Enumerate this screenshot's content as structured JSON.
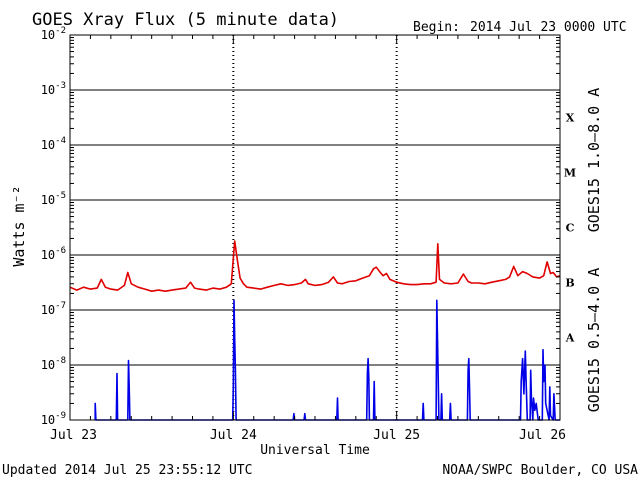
{
  "header": {
    "title": "GOES Xray Flux (5 minute data)",
    "begin_label": "Begin:",
    "begin_value": "2014 Jul 23 0000 UTC"
  },
  "footer": {
    "updated": "Updated 2014 Jul 25 23:55:12 UTC",
    "source": "NOAA/SWPC Boulder, CO USA"
  },
  "chart_data": {
    "type": "line",
    "title": "GOES Xray Flux (5 minute data)",
    "xlabel": "Universal Time",
    "ylabel": "Watts m⁻²",
    "y_scale": "log",
    "ylim": [
      1e-09,
      0.01
    ],
    "y_ticks": [
      {
        "value": 0.01,
        "base": "10",
        "exp": "-2"
      },
      {
        "value": 0.001,
        "base": "10",
        "exp": "-3"
      },
      {
        "value": 0.0001,
        "base": "10",
        "exp": "-4"
      },
      {
        "value": 1e-05,
        "base": "10",
        "exp": "-5"
      },
      {
        "value": 1e-06,
        "base": "10",
        "exp": "-6"
      },
      {
        "value": 1e-07,
        "base": "10",
        "exp": "-7"
      },
      {
        "value": 1e-08,
        "base": "10",
        "exp": "-8"
      },
      {
        "value": 1e-09,
        "base": "10",
        "exp": "-9"
      }
    ],
    "x_ticks": [
      {
        "hour": 0,
        "label": "Jul 23"
      },
      {
        "hour": 24,
        "label": "Jul 24"
      },
      {
        "hour": 48,
        "label": "Jul 25"
      },
      {
        "hour": 72,
        "label": "Jul 26"
      }
    ],
    "xlim_hours": [
      0,
      72
    ],
    "flare_classes": [
      {
        "label": "X",
        "lo": 0.0001,
        "hi": 0.001
      },
      {
        "label": "M",
        "lo": 1e-05,
        "hi": 0.0001
      },
      {
        "label": "C",
        "lo": 1e-06,
        "hi": 1e-05
      },
      {
        "label": "B",
        "lo": 1e-07,
        "hi": 1e-06
      },
      {
        "label": "A",
        "lo": 1e-08,
        "hi": 1e-07
      }
    ],
    "grid": "horizontal decade lines; dotted vertical day lines",
    "series": [
      {
        "name": "GOES15 1.0–8.0 A",
        "color": "#e00000",
        "points": [
          [
            0,
            2.6e-07
          ],
          [
            1,
            2.3e-07
          ],
          [
            2,
            2.6e-07
          ],
          [
            3,
            2.4e-07
          ],
          [
            4,
            2.5e-07
          ],
          [
            4.6,
            3.6e-07
          ],
          [
            5.2,
            2.6e-07
          ],
          [
            6,
            2.4e-07
          ],
          [
            7,
            2.3e-07
          ],
          [
            8,
            2.8e-07
          ],
          [
            8.5,
            4.8e-07
          ],
          [
            9,
            3e-07
          ],
          [
            10,
            2.6e-07
          ],
          [
            11,
            2.4e-07
          ],
          [
            12,
            2.2e-07
          ],
          [
            13,
            2.3e-07
          ],
          [
            14,
            2.2e-07
          ],
          [
            15,
            2.3e-07
          ],
          [
            16,
            2.4e-07
          ],
          [
            17,
            2.5e-07
          ],
          [
            17.7,
            3.2e-07
          ],
          [
            18.3,
            2.5e-07
          ],
          [
            19,
            2.4e-07
          ],
          [
            20,
            2.3e-07
          ],
          [
            21,
            2.5e-07
          ],
          [
            22,
            2.4e-07
          ],
          [
            23,
            2.6e-07
          ],
          [
            23.7,
            3e-07
          ],
          [
            24.2,
            1.8e-06
          ],
          [
            24.6,
            8e-07
          ],
          [
            25,
            3.8e-07
          ],
          [
            25.5,
            3e-07
          ],
          [
            26,
            2.6e-07
          ],
          [
            27,
            2.5e-07
          ],
          [
            28,
            2.4e-07
          ],
          [
            29,
            2.6e-07
          ],
          [
            30,
            2.8e-07
          ],
          [
            31,
            3e-07
          ],
          [
            32,
            2.8e-07
          ],
          [
            33,
            2.9e-07
          ],
          [
            34,
            3.1e-07
          ],
          [
            34.6,
            3.6e-07
          ],
          [
            35,
            3e-07
          ],
          [
            36,
            2.8e-07
          ],
          [
            37,
            2.9e-07
          ],
          [
            38,
            3.2e-07
          ],
          [
            38.7,
            4e-07
          ],
          [
            39.3,
            3.1e-07
          ],
          [
            40,
            3e-07
          ],
          [
            41,
            3.3e-07
          ],
          [
            42,
            3.4e-07
          ],
          [
            43,
            3.8e-07
          ],
          [
            44,
            4.2e-07
          ],
          [
            44.6,
            5.6e-07
          ],
          [
            45,
            6e-07
          ],
          [
            45.6,
            4.8e-07
          ],
          [
            46,
            4.2e-07
          ],
          [
            46.5,
            4.6e-07
          ],
          [
            47,
            3.6e-07
          ],
          [
            48,
            3.2e-07
          ],
          [
            49,
            3e-07
          ],
          [
            50,
            2.9e-07
          ],
          [
            51,
            2.9e-07
          ],
          [
            52,
            3e-07
          ],
          [
            53,
            3e-07
          ],
          [
            53.8,
            3.2e-07
          ],
          [
            54.05,
            1.6e-06
          ],
          [
            54.3,
            3.6e-07
          ],
          [
            55,
            3.1e-07
          ],
          [
            56,
            3e-07
          ],
          [
            57,
            3.1e-07
          ],
          [
            57.8,
            4.5e-07
          ],
          [
            58.5,
            3.3e-07
          ],
          [
            59,
            3.1e-07
          ],
          [
            60,
            3.1e-07
          ],
          [
            61,
            3e-07
          ],
          [
            62,
            3.2e-07
          ],
          [
            63,
            3.4e-07
          ],
          [
            64,
            3.6e-07
          ],
          [
            64.6,
            4e-07
          ],
          [
            65.2,
            6.2e-07
          ],
          [
            65.8,
            4.2e-07
          ],
          [
            66.5,
            5e-07
          ],
          [
            67.2,
            4.6e-07
          ],
          [
            68,
            4e-07
          ],
          [
            69,
            3.8e-07
          ],
          [
            69.6,
            4.2e-07
          ],
          [
            70.1,
            7.5e-07
          ],
          [
            70.6,
            4.6e-07
          ],
          [
            71,
            4.8e-07
          ],
          [
            71.5,
            4e-07
          ],
          [
            72,
            4.2e-07
          ]
        ]
      },
      {
        "name": "GOES15 0.5–4.0 A",
        "color": "#0000e8",
        "points": [
          [
            3.7,
            1e-09
          ],
          [
            3.7,
            2e-09
          ],
          [
            3.8,
            1e-09
          ],
          [
            6.8,
            1e-09
          ],
          [
            6.9,
            7e-09
          ],
          [
            7.0,
            1e-09
          ],
          [
            8.5,
            1e-09
          ],
          [
            8.6,
            1.2e-08
          ],
          [
            8.7,
            4e-09
          ],
          [
            8.8,
            1e-09
          ],
          [
            23.9,
            1e-09
          ],
          [
            24.0,
            4e-09
          ],
          [
            24.1,
            1.5e-07
          ],
          [
            24.2,
            3e-08
          ],
          [
            24.3,
            8e-09
          ],
          [
            24.4,
            1e-09
          ],
          [
            32.8,
            1e-09
          ],
          [
            32.9,
            1.3e-09
          ],
          [
            33.0,
            1e-09
          ],
          [
            34.4,
            1e-09
          ],
          [
            34.5,
            1.3e-09
          ],
          [
            34.6,
            1e-09
          ],
          [
            39.2,
            1e-09
          ],
          [
            39.3,
            2.5e-09
          ],
          [
            39.4,
            1e-09
          ],
          [
            43.6,
            1e-09
          ],
          [
            43.7,
            7e-09
          ],
          [
            43.8,
            1.3e-08
          ],
          [
            43.9,
            6e-09
          ],
          [
            44.0,
            1e-09
          ],
          [
            44.6,
            1e-09
          ],
          [
            44.7,
            5e-09
          ],
          [
            44.8,
            1e-09
          ],
          [
            51.8,
            1e-09
          ],
          [
            51.9,
            2e-09
          ],
          [
            52.0,
            1e-09
          ],
          [
            53.8,
            1e-09
          ],
          [
            53.9,
            1.5e-07
          ],
          [
            54.0,
            3e-08
          ],
          [
            54.1,
            6e-09
          ],
          [
            54.2,
            1e-09
          ],
          [
            54.5,
            1e-09
          ],
          [
            54.6,
            3e-09
          ],
          [
            54.7,
            1e-09
          ],
          [
            55.8,
            1e-09
          ],
          [
            55.9,
            2e-09
          ],
          [
            56.0,
            1e-09
          ],
          [
            58.4,
            1e-09
          ],
          [
            58.5,
            8e-09
          ],
          [
            58.6,
            1.3e-08
          ],
          [
            58.7,
            4e-09
          ],
          [
            58.8,
            1e-09
          ],
          [
            66.2,
            1e-09
          ],
          [
            66.3,
            5e-09
          ],
          [
            66.5,
            1.3e-08
          ],
          [
            66.7,
            3e-09
          ],
          [
            66.9,
            1.8e-08
          ],
          [
            67.0,
            6e-09
          ],
          [
            67.2,
            1e-09
          ],
          [
            67.6,
            1e-09
          ],
          [
            67.7,
            8e-09
          ],
          [
            67.8,
            2.5e-09
          ],
          [
            68.0,
            1e-09
          ],
          [
            68.1,
            2.5e-09
          ],
          [
            68.3,
            1.5e-09
          ],
          [
            68.5,
            2e-09
          ],
          [
            68.8,
            1e-09
          ],
          [
            69.4,
            1e-09
          ],
          [
            69.5,
            1.9e-08
          ],
          [
            69.6,
            5e-09
          ],
          [
            69.8,
            1e-08
          ],
          [
            69.9,
            2e-09
          ],
          [
            70.4,
            1e-09
          ],
          [
            70.5,
            4e-09
          ],
          [
            70.6,
            1.2e-09
          ],
          [
            71.0,
            1e-09
          ],
          [
            71.1,
            3e-09
          ],
          [
            71.3,
            1e-09
          ],
          [
            72.0,
            1e-09
          ]
        ]
      }
    ]
  }
}
